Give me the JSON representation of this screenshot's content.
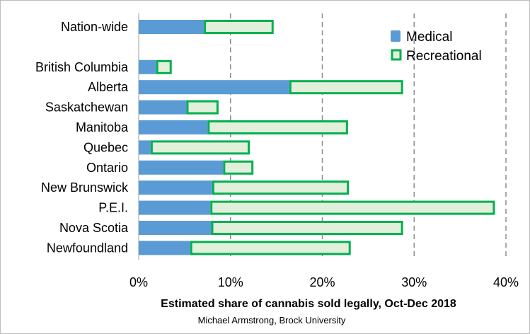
{
  "chart_data": {
    "type": "bar",
    "orientation": "horizontal",
    "stacked": true,
    "categories": [
      "Nation-wide",
      "",
      "British Columbia",
      "Alberta",
      "Saskatchewan",
      "Manitoba",
      "Quebec",
      "Ontario",
      "New Brunswick",
      "P.E.I.",
      "Nova Scotia",
      "Newfoundland"
    ],
    "series": [
      {
        "name": "Medical",
        "color": "#5b9bd5",
        "values": [
          7.1,
          null,
          1.9,
          16.4,
          5.2,
          7.5,
          1.3,
          9.2,
          8.0,
          7.8,
          7.9,
          5.6
        ]
      },
      {
        "name": "Recreational",
        "color": "#e2efda",
        "stroke": "#00b050",
        "values": [
          7.6,
          null,
          1.7,
          12.4,
          3.5,
          15.3,
          10.8,
          3.3,
          14.9,
          31.0,
          20.9,
          17.5
        ]
      }
    ],
    "xlim": [
      0,
      40
    ],
    "xticks": [
      0,
      10,
      20,
      30,
      40
    ],
    "xtick_labels": [
      "0%",
      "10%",
      "20%",
      "30%",
      "40%"
    ],
    "xlabel": "Estimated share of cannabis sold legally, Oct-Dec 2018",
    "ylabel": "",
    "grid": "vertical dashed",
    "legend": "top-right",
    "credit": "Michael Armstrong, Brock University"
  }
}
